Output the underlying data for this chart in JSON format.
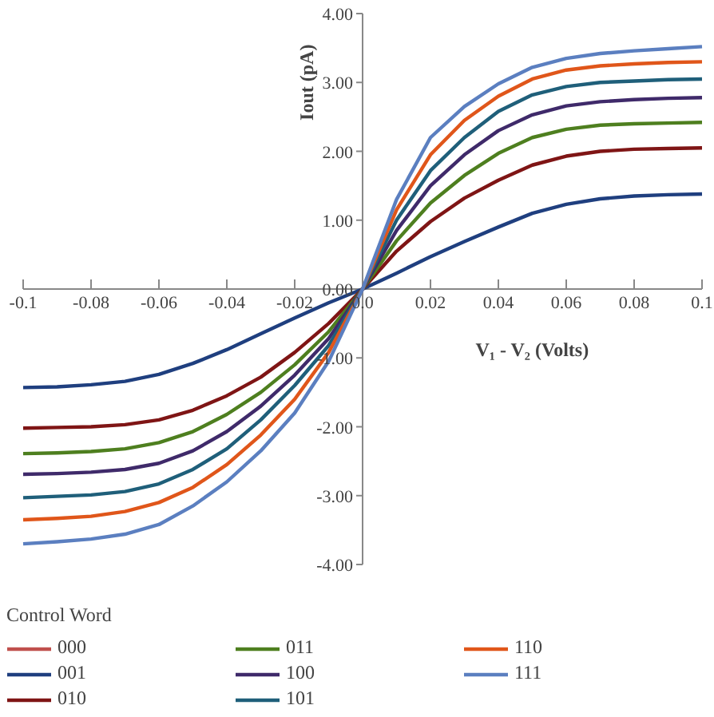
{
  "chart_data": {
    "type": "line",
    "xlabel": "V₁ - V₂ (Volts)",
    "ylabel": "Iout (pA)",
    "legend_title": "Control Word",
    "legend": "bottom",
    "grid": false,
    "marker": "none",
    "line_style": "solid",
    "x": [
      -0.1,
      -0.09,
      -0.08,
      -0.07,
      -0.06,
      -0.05,
      -0.04,
      -0.03,
      -0.02,
      -0.01,
      0.0,
      0.01,
      0.02,
      0.03,
      0.04,
      0.05,
      0.06,
      0.07,
      0.08,
      0.09,
      0.1
    ],
    "xlim": [
      -0.1,
      0.1
    ],
    "ylim": [
      -4,
      4
    ],
    "xticks": [
      {
        "value": -0.1,
        "label": "-0.1"
      },
      -0.08,
      -0.06,
      -0.04,
      -0.02,
      {
        "value": 0,
        "label": "0.0"
      },
      0.02,
      0.04,
      0.06,
      0.08,
      {
        "value": 0.1,
        "label": "0.1"
      }
    ],
    "yticks": [
      {
        "value": -4,
        "label": "-4.00"
      },
      {
        "value": -3,
        "label": "-3.00"
      },
      {
        "value": -2,
        "label": "-2.00"
      },
      {
        "value": -1,
        "label": "-1.00"
      },
      {
        "value": 0,
        "label": "0.00"
      },
      {
        "value": 1,
        "label": "1.00"
      },
      {
        "value": 2,
        "label": "2.00"
      },
      {
        "value": 3,
        "label": "3.00"
      },
      {
        "value": 4,
        "label": "4.00"
      }
    ],
    "series": [
      {
        "name": "000",
        "color": "#c0504d",
        "values": [
          null,
          null,
          null,
          null,
          null,
          null,
          null,
          null,
          null,
          null,
          null,
          null,
          null,
          null,
          null,
          null,
          null,
          null,
          null,
          null,
          null
        ]
      },
      {
        "name": "001",
        "color": "#1f3f7f",
        "values": [
          -1.43,
          -1.42,
          -1.39,
          -1.34,
          -1.24,
          -1.08,
          -0.88,
          -0.65,
          -0.42,
          -0.2,
          0,
          0.23,
          0.47,
          0.69,
          0.9,
          1.1,
          1.23,
          1.31,
          1.35,
          1.37,
          1.38
        ]
      },
      {
        "name": "010",
        "color": "#7f1515",
        "values": [
          -2.02,
          -2.01,
          -2.0,
          -1.97,
          -1.9,
          -1.76,
          -1.55,
          -1.28,
          -0.92,
          -0.5,
          0,
          0.55,
          0.98,
          1.32,
          1.58,
          1.8,
          1.93,
          2.0,
          2.03,
          2.04,
          2.05
        ]
      },
      {
        "name": "011",
        "color": "#4e7f1f",
        "values": [
          -2.39,
          -2.38,
          -2.36,
          -2.32,
          -2.23,
          -2.07,
          -1.82,
          -1.5,
          -1.1,
          -0.62,
          0,
          0.7,
          1.25,
          1.65,
          1.97,
          2.2,
          2.32,
          2.38,
          2.4,
          2.41,
          2.42
        ]
      },
      {
        "name": "100",
        "color": "#3f2a6a",
        "values": [
          -2.69,
          -2.68,
          -2.66,
          -2.62,
          -2.53,
          -2.35,
          -2.07,
          -1.7,
          -1.25,
          -0.72,
          0,
          0.85,
          1.5,
          1.95,
          2.3,
          2.53,
          2.66,
          2.72,
          2.75,
          2.77,
          2.78
        ]
      },
      {
        "name": "101",
        "color": "#1f5f7a",
        "values": [
          -3.03,
          -3.01,
          -2.99,
          -2.94,
          -2.83,
          -2.62,
          -2.32,
          -1.9,
          -1.4,
          -0.82,
          0,
          1.0,
          1.72,
          2.2,
          2.58,
          2.82,
          2.94,
          3.0,
          3.02,
          3.04,
          3.05
        ]
      },
      {
        "name": "110",
        "color": "#e0561a",
        "values": [
          -3.35,
          -3.33,
          -3.3,
          -3.23,
          -3.1,
          -2.88,
          -2.55,
          -2.12,
          -1.6,
          -0.92,
          0,
          1.15,
          1.95,
          2.45,
          2.8,
          3.05,
          3.18,
          3.24,
          3.27,
          3.29,
          3.3
        ]
      },
      {
        "name": "111",
        "color": "#5b7fc0",
        "values": [
          -3.7,
          -3.67,
          -3.63,
          -3.56,
          -3.42,
          -3.15,
          -2.8,
          -2.35,
          -1.8,
          -1.05,
          0,
          1.3,
          2.2,
          2.65,
          2.98,
          3.22,
          3.35,
          3.42,
          3.46,
          3.49,
          3.52
        ]
      }
    ]
  }
}
